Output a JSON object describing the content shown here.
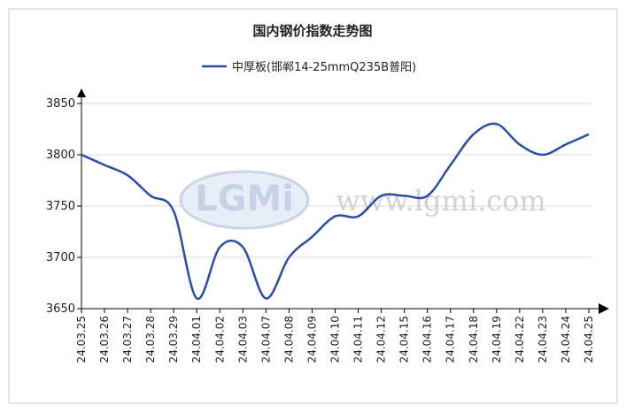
{
  "chart_data": {
    "type": "line",
    "title": "国内钢价指数走势图",
    "watermark_logo": "LGMi",
    "watermark_url": "www.lgmi.com",
    "categories": [
      "24.03.25",
      "24.03.26",
      "24.03.27",
      "24.03.28",
      "24.03.29",
      "24.04.01",
      "24.04.02",
      "24.04.03",
      "24.04.07",
      "24.04.08",
      "24.04.09",
      "24.04.10",
      "24.04.11",
      "24.04.12",
      "24.04.15",
      "24.04.16",
      "24.04.17",
      "24.04.18",
      "24.04.19",
      "24.04.22",
      "24.04.23",
      "24.04.24",
      "24.04.25"
    ],
    "series": [
      {
        "name": "中厚板(邯郸14-25mmQ235B普阳)",
        "color": "#2a4ea6",
        "values": [
          3800,
          3790,
          3780,
          3760,
          3745,
          3660,
          3710,
          3710,
          3660,
          3700,
          3720,
          3740,
          3740,
          3760,
          3760,
          3760,
          3790,
          3820,
          3830,
          3810,
          3800,
          3810,
          3820
        ]
      }
    ],
    "ylim": [
      3650,
      3850
    ],
    "yticks": [
      3650,
      3700,
      3750,
      3800,
      3850
    ],
    "grid": true
  }
}
